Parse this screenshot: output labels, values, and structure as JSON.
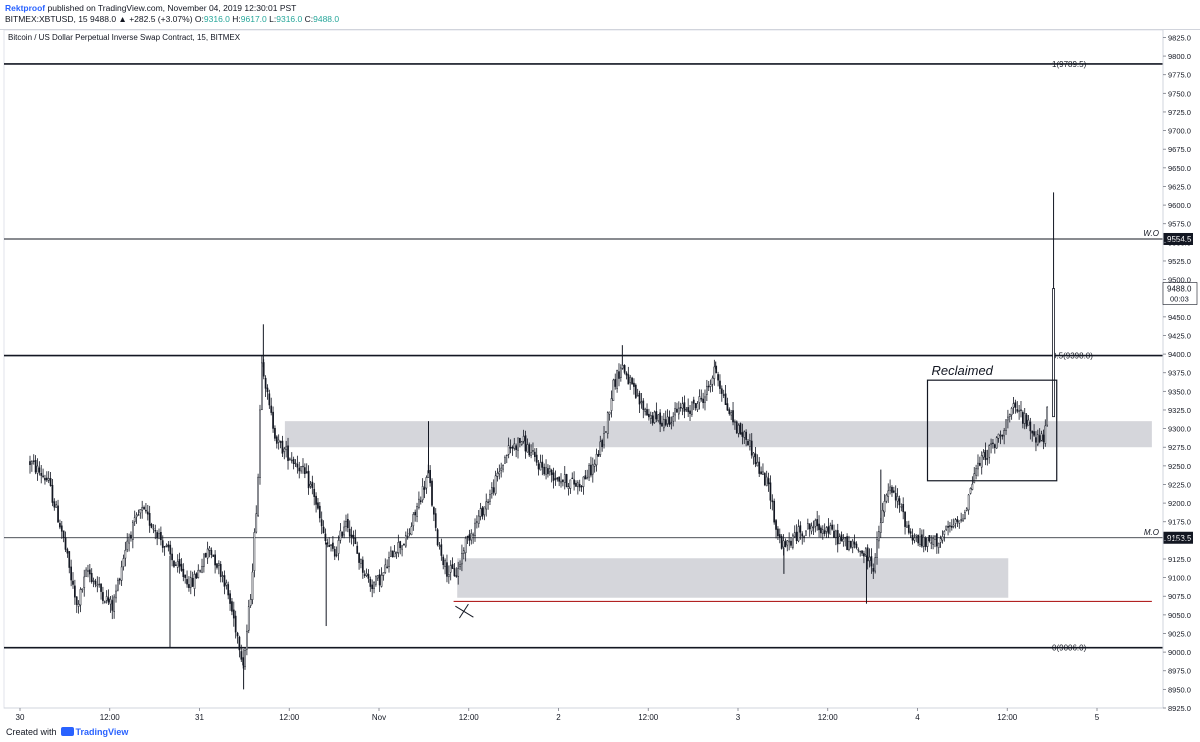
{
  "header": {
    "author": "Rektproof",
    "published_text": "published on TradingView.com, November 04, 2019 12:30:01 PST",
    "symbol": "BITMEX:XBTUSD, 15",
    "last_price": "9488.0",
    "change": "▲ +282.5 (+3.07%)",
    "o_label": "O:",
    "o_value": "9316.0",
    "h_label": "H:",
    "h_value": "9617.0",
    "l_label": "L:",
    "l_value": "9316.0",
    "c_label": "C:",
    "c_value": "9488.0"
  },
  "footer": {
    "created_with": "Created with",
    "brand": "TradingView"
  },
  "chart_data": {
    "type": "candlestick",
    "title": "Bitcoin / US Dollar Perpetual Inverse Swap Contract, 15, BITMEX",
    "ylim": [
      8925,
      9835
    ],
    "y_ticks": [
      8925,
      8950,
      8975,
      9000,
      9025,
      9050,
      9075,
      9100,
      9125,
      9150,
      9175,
      9200,
      9225,
      9250,
      9275,
      9300,
      9325,
      9350,
      9375,
      9400,
      9425,
      9450,
      9475,
      9500,
      9525,
      9550,
      9575,
      9600,
      9625,
      9650,
      9675,
      9700,
      9725,
      9750,
      9775,
      9800,
      9825
    ],
    "x_ticks": [
      {
        "label": "30",
        "t": 0.0
      },
      {
        "label": "12:00",
        "t": 0.5
      },
      {
        "label": "31",
        "t": 1.0
      },
      {
        "label": "12:00",
        "t": 1.5
      },
      {
        "label": "Nov",
        "t": 2.0
      },
      {
        "label": "12:00",
        "t": 2.5
      },
      {
        "label": "2",
        "t": 3.0
      },
      {
        "label": "12:00",
        "t": 3.5
      },
      {
        "label": "3",
        "t": 4.0
      },
      {
        "label": "12:00",
        "t": 4.5
      },
      {
        "label": "4",
        "t": 5.0
      },
      {
        "label": "12:00",
        "t": 5.5
      },
      {
        "label": "5",
        "t": 6.0
      }
    ],
    "x_unit": "days since Oct 30 00:00",
    "horizontal_lines": [
      {
        "label": "1(9789.5)",
        "price": 9789.5,
        "style": "bold"
      },
      {
        "label": "W.O",
        "price": 9554.5,
        "style": "normal",
        "axis_badge": "9554.5"
      },
      {
        "label": "0.5(9398.0)",
        "price": 9398.0,
        "style": "bold"
      },
      {
        "label": "M.O",
        "price": 9153.5,
        "style": "thin",
        "axis_badge": "9153.5"
      },
      {
        "label": "0(9006.0)",
        "price": 9006.0,
        "style": "bold"
      }
    ],
    "support_line": {
      "price": 9068,
      "t_start": 2.36,
      "t_end": 6.25,
      "color": "#b22222"
    },
    "zones": [
      {
        "price_top": 9310,
        "price_bottom": 9275,
        "t_start": 1.42,
        "t_end": 6.25
      },
      {
        "price_top": 9126,
        "price_bottom": 9073,
        "t_start": 2.38,
        "t_end": 5.45
      }
    ],
    "annotation_box": {
      "label": "Reclaimed",
      "price_top": 9365,
      "price_bottom": 9230,
      "t_start": 5.0,
      "t_end": 5.72
    },
    "cross_marker": {
      "t": 2.42,
      "price": 9055
    },
    "last_price_badge": {
      "value": "9488.0",
      "countdown": "00:03"
    },
    "path": [
      [
        0.0,
        9255
      ],
      [
        0.1,
        9230
      ],
      [
        0.18,
        9160
      ],
      [
        0.26,
        9060
      ],
      [
        0.32,
        9110
      ],
      [
        0.4,
        9080
      ],
      [
        0.46,
        9060
      ],
      [
        0.54,
        9150
      ],
      [
        0.62,
        9190
      ],
      [
        0.7,
        9165
      ],
      [
        0.8,
        9120
      ],
      [
        0.9,
        9090
      ],
      [
        1.0,
        9140
      ],
      [
        1.08,
        9100
      ],
      [
        1.14,
        9040
      ],
      [
        1.19,
        8985
      ],
      [
        1.23,
        9080
      ],
      [
        1.27,
        9230
      ],
      [
        1.29,
        9400
      ],
      [
        1.33,
        9330
      ],
      [
        1.38,
        9280
      ],
      [
        1.42,
        9270
      ],
      [
        1.5,
        9250
      ],
      [
        1.58,
        9215
      ],
      [
        1.64,
        9150
      ],
      [
        1.7,
        9130
      ],
      [
        1.76,
        9180
      ],
      [
        1.84,
        9120
      ],
      [
        1.9,
        9090
      ],
      [
        1.96,
        9100
      ],
      [
        2.03,
        9140
      ],
      [
        2.1,
        9150
      ],
      [
        2.17,
        9205
      ],
      [
        2.22,
        9240
      ],
      [
        2.26,
        9160
      ],
      [
        2.32,
        9110
      ],
      [
        2.38,
        9105
      ],
      [
        2.42,
        9145
      ],
      [
        2.5,
        9180
      ],
      [
        2.58,
        9220
      ],
      [
        2.66,
        9270
      ],
      [
        2.74,
        9285
      ],
      [
        2.82,
        9255
      ],
      [
        2.9,
        9240
      ],
      [
        2.98,
        9230
      ],
      [
        3.06,
        9225
      ],
      [
        3.14,
        9250
      ],
      [
        3.2,
        9290
      ],
      [
        3.25,
        9360
      ],
      [
        3.3,
        9385
      ],
      [
        3.38,
        9340
      ],
      [
        3.46,
        9315
      ],
      [
        3.54,
        9310
      ],
      [
        3.62,
        9325
      ],
      [
        3.7,
        9330
      ],
      [
        3.76,
        9345
      ],
      [
        3.82,
        9380
      ],
      [
        3.88,
        9330
      ],
      [
        3.94,
        9300
      ],
      [
        4.0,
        9285
      ],
      [
        4.06,
        9245
      ],
      [
        4.12,
        9220
      ],
      [
        4.16,
        9160
      ],
      [
        4.2,
        9140
      ],
      [
        4.28,
        9160
      ],
      [
        4.36,
        9170
      ],
      [
        4.44,
        9165
      ],
      [
        4.52,
        9150
      ],
      [
        4.6,
        9140
      ],
      [
        4.66,
        9130
      ],
      [
        4.7,
        9115
      ],
      [
        4.74,
        9175
      ],
      [
        4.78,
        9220
      ],
      [
        4.84,
        9200
      ],
      [
        4.9,
        9160
      ],
      [
        4.98,
        9145
      ],
      [
        5.06,
        9150
      ],
      [
        5.12,
        9165
      ],
      [
        5.18,
        9175
      ],
      [
        5.22,
        9200
      ],
      [
        5.26,
        9240
      ],
      [
        5.32,
        9265
      ],
      [
        5.38,
        9280
      ],
      [
        5.44,
        9310
      ],
      [
        5.48,
        9325
      ],
      [
        5.52,
        9320
      ],
      [
        5.56,
        9305
      ],
      [
        5.6,
        9290
      ],
      [
        5.64,
        9285
      ],
      [
        5.66,
        9300
      ],
      [
        5.67,
        9330
      ],
      [
        5.68,
        9488
      ]
    ],
    "last_candle": {
      "open": 9316.0,
      "high": 9617.0,
      "low": 9316.0,
      "close": 9488.0
    },
    "spikes": [
      {
        "t": 0.78,
        "price": 9005
      },
      {
        "t": 1.19,
        "price": 8950
      },
      {
        "t": 1.3,
        "price": 9440
      },
      {
        "t": 1.65,
        "price": 9035
      },
      {
        "t": 2.22,
        "price": 9310
      },
      {
        "t": 3.3,
        "price": 9412
      },
      {
        "t": 3.82,
        "price": 9390
      },
      {
        "t": 4.2,
        "price": 9105
      },
      {
        "t": 4.66,
        "price": 9065
      },
      {
        "t": 4.74,
        "price": 9245
      }
    ]
  }
}
